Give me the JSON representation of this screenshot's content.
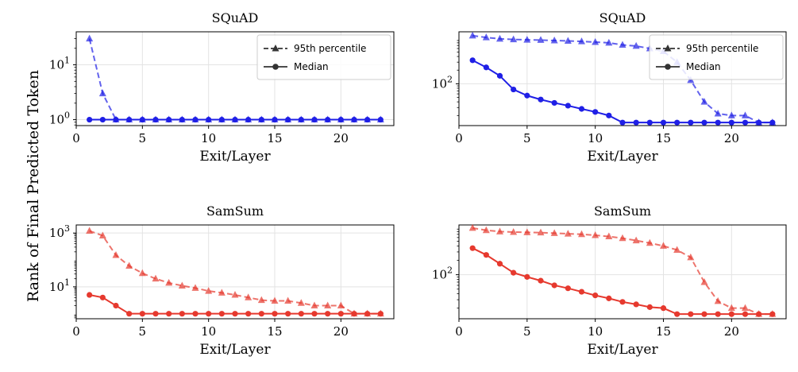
{
  "figure": {
    "shared_ylabel": "Rank of Final Predicted Token"
  },
  "chart_data": [
    {
      "type": "line",
      "title": "SQuAD",
      "xlabel": "Exit/Layer",
      "ylabel": "",
      "xlim": [
        0,
        24
      ],
      "xticks": [
        0,
        5,
        10,
        15,
        20
      ],
      "yscale": "log",
      "ylim": [
        0.78,
        40
      ],
      "yticks": [
        {
          "value": 1,
          "base": "10",
          "exp": "0"
        },
        {
          "value": 10,
          "base": "10",
          "exp": "1"
        }
      ],
      "grid": true,
      "legend": "top-right",
      "color": "#1f1fe6",
      "series": [
        {
          "name": "95th percentile",
          "style": "dashed-triangle",
          "x": [
            1,
            2,
            3,
            4,
            5,
            6,
            7,
            8,
            9,
            10,
            11,
            12,
            13,
            14,
            15,
            16,
            17,
            18,
            19,
            20,
            21,
            22,
            23
          ],
          "values": [
            30,
            3,
            1,
            1,
            1,
            1,
            1,
            1,
            1,
            1,
            1,
            1,
            1,
            1,
            1,
            1,
            1,
            1,
            1,
            1,
            1,
            1,
            1
          ]
        },
        {
          "name": "Median",
          "style": "solid-circle",
          "x": [
            1,
            2,
            3,
            4,
            5,
            6,
            7,
            8,
            9,
            10,
            11,
            12,
            13,
            14,
            15,
            16,
            17,
            18,
            19,
            20,
            21,
            22,
            23
          ],
          "values": [
            1,
            1,
            1,
            1,
            1,
            1,
            1,
            1,
            1,
            1,
            1,
            1,
            1,
            1,
            1,
            1,
            1,
            1,
            1,
            1,
            1,
            1,
            1
          ]
        }
      ]
    },
    {
      "type": "line",
      "title": "SQuAD",
      "xlabel": "Exit/Layer",
      "ylabel": "",
      "xlim": [
        0,
        24
      ],
      "xticks": [
        0,
        5,
        10,
        15,
        20
      ],
      "yscale": "log",
      "ylim": [
        12,
        1400
      ],
      "yticks": [
        {
          "value": 100,
          "base": "10",
          "exp": "2"
        }
      ],
      "grid": true,
      "legend": "top-right",
      "color": "#1f1fe6",
      "series": [
        {
          "name": "95th percentile",
          "style": "dashed-triangle",
          "x": [
            1,
            2,
            3,
            4,
            5,
            6,
            7,
            8,
            9,
            10,
            11,
            12,
            13,
            14,
            15,
            16,
            17,
            18,
            19,
            20,
            21,
            22,
            23
          ],
          "values": [
            1150,
            1050,
            980,
            950,
            930,
            920,
            900,
            880,
            860,
            830,
            800,
            720,
            680,
            600,
            520,
            300,
            120,
            40,
            22,
            20,
            20,
            14,
            14
          ]
        },
        {
          "name": "Median",
          "style": "solid-circle",
          "x": [
            1,
            2,
            3,
            4,
            5,
            6,
            7,
            8,
            9,
            10,
            11,
            12,
            13,
            14,
            15,
            16,
            17,
            18,
            19,
            20,
            21,
            22,
            23
          ],
          "values": [
            330,
            230,
            150,
            75,
            55,
            45,
            38,
            33,
            28,
            24,
            20,
            14,
            14,
            14,
            14,
            14,
            14,
            14,
            14,
            14,
            14,
            14,
            14
          ]
        }
      ]
    },
    {
      "type": "line",
      "title": "SamSum",
      "xlabel": "Exit/Layer",
      "ylabel": "",
      "xlim": [
        0,
        24
      ],
      "xticks": [
        0,
        5,
        10,
        15,
        20
      ],
      "yscale": "log",
      "ylim": [
        0.65,
        2000
      ],
      "yticks": [
        {
          "value": 10,
          "base": "10",
          "exp": "1"
        },
        {
          "value": 1000,
          "base": "10",
          "exp": "3"
        }
      ],
      "grid": true,
      "legend": "none",
      "color": "#e6392e",
      "series": [
        {
          "name": "95th percentile",
          "style": "dashed-triangle",
          "x": [
            1,
            2,
            3,
            4,
            5,
            6,
            7,
            8,
            9,
            10,
            11,
            12,
            13,
            14,
            15,
            16,
            17,
            18,
            19,
            20,
            21,
            22,
            23
          ],
          "values": [
            1200,
            800,
            150,
            60,
            32,
            20,
            14,
            11,
            9,
            7,
            6,
            5,
            4,
            3.2,
            3,
            3,
            2.5,
            2,
            2,
            2,
            1,
            1,
            1
          ]
        },
        {
          "name": "Median",
          "style": "solid-circle",
          "x": [
            1,
            2,
            3,
            4,
            5,
            6,
            7,
            8,
            9,
            10,
            11,
            12,
            13,
            14,
            15,
            16,
            17,
            18,
            19,
            20,
            21,
            22,
            23
          ],
          "values": [
            5,
            4,
            2,
            1,
            1,
            1,
            1,
            1,
            1,
            1,
            1,
            1,
            1,
            1,
            1,
            1,
            1,
            1,
            1,
            1,
            1,
            1,
            1
          ]
        }
      ]
    },
    {
      "type": "line",
      "title": "SamSum",
      "xlabel": "Exit/Layer",
      "ylabel": "",
      "xlim": [
        0,
        24
      ],
      "xticks": [
        0,
        5,
        10,
        15,
        20
      ],
      "yscale": "log",
      "ylim": [
        12,
        1100
      ],
      "yticks": [
        {
          "value": 100,
          "base": "10",
          "exp": "2"
        }
      ],
      "grid": true,
      "legend": "none",
      "color": "#e6392e",
      "series": [
        {
          "name": "95th percentile",
          "style": "dashed-triangle",
          "x": [
            1,
            2,
            3,
            4,
            5,
            6,
            7,
            8,
            9,
            10,
            11,
            12,
            13,
            14,
            15,
            16,
            17,
            18,
            19,
            20,
            21,
            22,
            23
          ],
          "values": [
            950,
            850,
            800,
            780,
            770,
            760,
            740,
            720,
            700,
            670,
            630,
            580,
            520,
            460,
            400,
            330,
            230,
            70,
            28,
            20,
            20,
            15,
            15
          ]
        },
        {
          "name": "Median",
          "style": "solid-circle",
          "x": [
            1,
            2,
            3,
            4,
            5,
            6,
            7,
            8,
            9,
            10,
            11,
            12,
            13,
            14,
            15,
            16,
            17,
            18,
            19,
            20,
            21,
            22,
            23
          ],
          "values": [
            360,
            260,
            170,
            110,
            90,
            75,
            60,
            52,
            44,
            37,
            32,
            27,
            24,
            21,
            20,
            15,
            15,
            15,
            15,
            15,
            15,
            15,
            15
          ]
        }
      ]
    }
  ]
}
